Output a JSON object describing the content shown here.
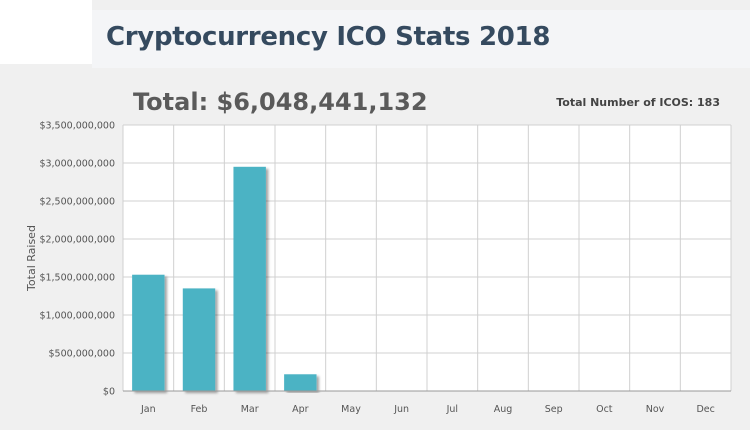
{
  "header": {
    "title": "Cryptocurrency ICO Stats 2018"
  },
  "summary": {
    "total_text": "Total: $6,048,441,132",
    "icos_text": "Total Number of ICOS: 183"
  },
  "colors": {
    "bar": "#4bb3c4",
    "grid": "#d0d0d0",
    "plot_bg": "#ffffff",
    "title": "#354a5f"
  },
  "chart_data": {
    "type": "bar",
    "categories": [
      "Jan",
      "Feb",
      "Mar",
      "Apr",
      "May",
      "Jun",
      "Jul",
      "Aug",
      "Sep",
      "Oct",
      "Nov",
      "Dec"
    ],
    "values": [
      1530000000,
      1350000000,
      2950000000,
      220000000,
      0,
      0,
      0,
      0,
      0,
      0,
      0,
      0
    ],
    "ylabel": "Total Raised",
    "ylim": [
      0,
      3500000000
    ],
    "yticks": [
      0,
      500000000,
      1000000000,
      1500000000,
      2000000000,
      2500000000,
      3000000000,
      3500000000
    ],
    "ytick_labels": [
      "$0",
      "$500,000,000",
      "$1,000,000,000",
      "$1,500,000,000",
      "$2,000,000,000",
      "$2,500,000,000",
      "$3,000,000,000",
      "$3,500,000,000"
    ],
    "grid": true
  }
}
